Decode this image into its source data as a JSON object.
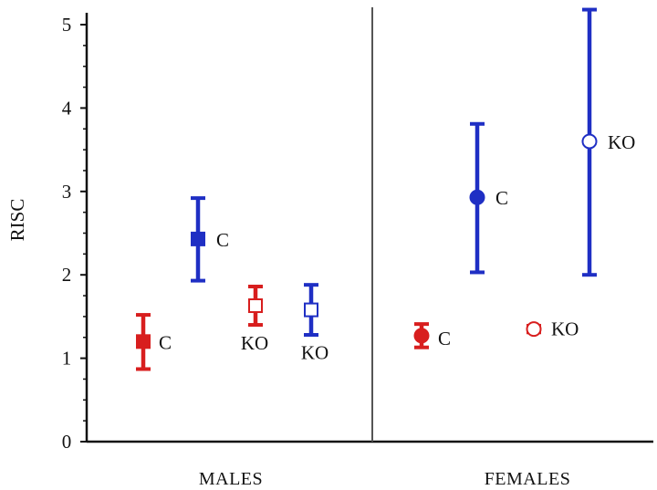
{
  "chart_data": {
    "type": "scatter",
    "ylabel": "RISC",
    "ylim": [
      0,
      5.25
    ],
    "yticks": [
      "0",
      "1",
      "2",
      "3",
      "4",
      "5"
    ],
    "groups": [
      "MALES",
      "FEMALES"
    ],
    "grid": false,
    "points": [
      {
        "group": "MALES",
        "label": "C",
        "color": "#d81e1e",
        "marker": "square",
        "filled": true,
        "y": 1.2,
        "err_low": 0.87,
        "err_high": 1.52
      },
      {
        "group": "MALES",
        "label": "C",
        "color": "#1f2fc4",
        "marker": "square",
        "filled": true,
        "y": 2.43,
        "err_low": 1.93,
        "err_high": 2.92
      },
      {
        "group": "MALES",
        "label": "KO",
        "color": "#d81e1e",
        "marker": "square",
        "filled": false,
        "y": 1.63,
        "err_low": 1.4,
        "err_high": 1.86
      },
      {
        "group": "MALES",
        "label": "KO",
        "color": "#1f2fc4",
        "marker": "square",
        "filled": false,
        "y": 1.58,
        "err_low": 1.28,
        "err_high": 1.88
      },
      {
        "group": "FEMALES",
        "label": "C",
        "color": "#d81e1e",
        "marker": "circle",
        "filled": true,
        "y": 1.27,
        "err_low": 1.13,
        "err_high": 1.41
      },
      {
        "group": "FEMALES",
        "label": "C",
        "color": "#1f2fc4",
        "marker": "circle",
        "filled": true,
        "y": 2.93,
        "err_low": 2.03,
        "err_high": 3.81
      },
      {
        "group": "FEMALES",
        "label": "KO",
        "color": "#d81e1e",
        "marker": "circle",
        "filled": false,
        "y": 1.35,
        "err_low": 1.31,
        "err_high": 1.39
      },
      {
        "group": "FEMALES",
        "label": "KO",
        "color": "#1f2fc4",
        "marker": "circle",
        "filled": false,
        "y": 3.6,
        "err_low": 2.0,
        "err_high": 5.18
      }
    ]
  }
}
